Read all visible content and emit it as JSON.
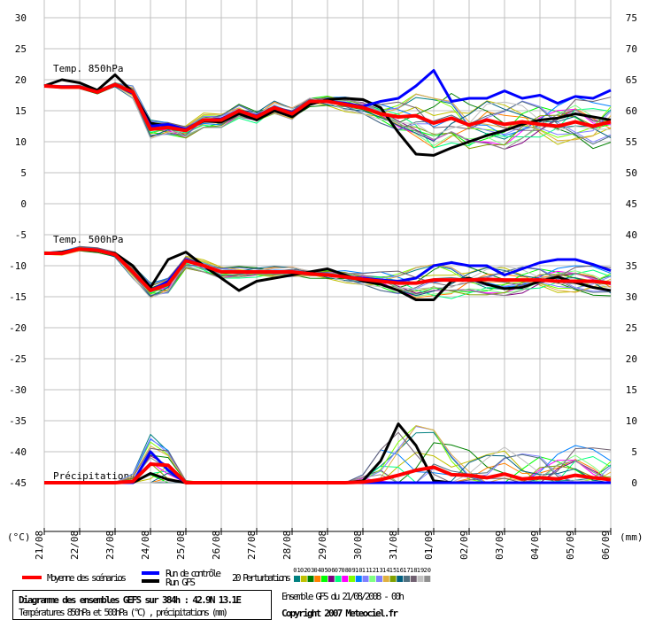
{
  "chart_data": {
    "type": "line",
    "title": "Diagramme des ensembles GEFS sur 384h : 42.9N 13.1E",
    "subtitle": "Températures 850hPa et 500hPa (°C) , précipitations (mm)",
    "run_info": "Ensemble GFS du 21/08/2008 - 00h",
    "copyright": "Copyright 2007 Meteociel.fr",
    "left_unit": "(°C)",
    "right_unit": "(mm)",
    "left_ticks": [
      30,
      25,
      20,
      15,
      10,
      5,
      0,
      -5,
      -10,
      -15,
      -20,
      -25,
      -30,
      -35,
      -40,
      -45
    ],
    "right_ticks": [
      75,
      70,
      65,
      60,
      55,
      50,
      45,
      40,
      35,
      30,
      25,
      20,
      15,
      10,
      5,
      0
    ],
    "x_labels": [
      "21/08",
      "22/08",
      "23/08",
      "24/08",
      "25/08",
      "26/08",
      "27/08",
      "28/08",
      "29/08",
      "30/08",
      "31/08",
      "01/09",
      "02/09",
      "03/09",
      "04/09",
      "05/09",
      "06/09"
    ],
    "x_step_hours": 12,
    "grid": true,
    "panels": {
      "t850": {
        "label": "Temp. 850hPa",
        "unit": "°C",
        "mean": [
          19,
          18.8,
          18.8,
          18,
          19.2,
          18,
          12,
          12.3,
          11.8,
          13.5,
          13.5,
          15,
          14,
          15.5,
          14.5,
          16.5,
          16.5,
          16,
          15.5,
          14.5,
          14,
          14.2,
          13,
          13.8,
          12.7,
          13.5,
          12.8,
          13.2,
          12.8,
          12.5,
          13.2,
          12.5,
          13.2
        ],
        "control": [
          19,
          18.8,
          18.8,
          18,
          19.2,
          17.8,
          12.5,
          12.8,
          12,
          13.5,
          13.7,
          15,
          14.2,
          15.5,
          14.7,
          16.5,
          16.5,
          16.2,
          15.7,
          16.5,
          17,
          19,
          21.5,
          16.5,
          17,
          17,
          18.2,
          17,
          17.5,
          16.2,
          17.3,
          17,
          18.3
        ],
        "gfs": [
          19,
          20,
          19.5,
          18.3,
          20.8,
          18,
          13,
          12.5,
          12,
          13.3,
          13.2,
          14.5,
          13.5,
          15,
          14,
          16,
          16.8,
          17,
          16.8,
          15.5,
          11.5,
          8,
          7.8,
          9,
          10,
          11,
          11.8,
          12.8,
          13.5,
          13.8,
          14.5,
          14,
          13.5
        ],
        "spread": [
          0.3,
          0.3,
          0.3,
          0.3,
          0.4,
          1,
          1.5,
          1.2,
          1.2,
          1.2,
          1.2,
          1.2,
          1.2,
          1.2,
          1.2,
          1.2,
          1.2,
          1.2,
          1.2,
          1.5,
          2.5,
          3.5,
          4,
          4,
          4,
          4,
          4,
          4,
          4,
          4,
          4,
          4,
          4
        ]
      },
      "t500": {
        "label": "Temp. 500hPa",
        "unit": "°C",
        "mean": [
          -8,
          -8,
          -7.3,
          -7.5,
          -8.2,
          -11,
          -14,
          -13,
          -9.2,
          -10,
          -11,
          -11,
          -11,
          -11,
          -11,
          -11.3,
          -11.5,
          -11.8,
          -12.2,
          -12.5,
          -12.8,
          -12.8,
          -12.3,
          -12.3,
          -12.3,
          -12.2,
          -12.3,
          -12.3,
          -12.3,
          -12.5,
          -12.5,
          -12.5,
          -12.8
        ],
        "control": [
          -8,
          -8,
          -7.3,
          -7.5,
          -8.2,
          -11,
          -14,
          -12.5,
          -9,
          -10,
          -11,
          -11,
          -11,
          -11,
          -11,
          -11.3,
          -11.5,
          -11.8,
          -12,
          -12.3,
          -12.5,
          -12,
          -10,
          -9.5,
          -10,
          -10,
          -11.5,
          -10.5,
          -9.5,
          -9,
          -9,
          -9.8,
          -10.8
        ],
        "gfs": [
          -8,
          -7.8,
          -7.3,
          -7.6,
          -8,
          -10,
          -13.5,
          -9,
          -7.8,
          -10,
          -12,
          -14,
          -12.5,
          -12,
          -11.5,
          -11,
          -10.5,
          -11.5,
          -12.5,
          -13,
          -14,
          -15.5,
          -15.5,
          -12.5,
          -12,
          -13,
          -13.7,
          -13.5,
          -12.5,
          -11.8,
          -12.7,
          -13.5,
          -14
        ],
        "spread": [
          0.4,
          0.4,
          0.4,
          0.4,
          0.5,
          1,
          1.2,
          1.5,
          1.2,
          1,
          1,
          1,
          1,
          1,
          1,
          1,
          1,
          1,
          1,
          1.5,
          2,
          2.5,
          2.5,
          3,
          2.5,
          2.5,
          2.5,
          2.5,
          2.5,
          2.5,
          2.5,
          2.5,
          2.5
        ]
      },
      "precip": {
        "label": "Précipitations",
        "unit": "mm",
        "mean": [
          0,
          0,
          0,
          0,
          0,
          0.2,
          3,
          2.8,
          0,
          0,
          0,
          0,
          0,
          0,
          0,
          0,
          0,
          0,
          0.1,
          0.5,
          1.2,
          2,
          2.5,
          1.3,
          1.2,
          0.8,
          1.4,
          0.6,
          0.8,
          0.6,
          1.2,
          0.8,
          0.5
        ],
        "control": [
          0,
          0,
          0,
          0,
          0,
          0,
          5,
          2,
          0,
          0,
          0,
          0,
          0,
          0,
          0,
          0,
          0,
          0,
          0,
          0,
          0,
          0,
          0,
          0,
          0,
          0,
          0,
          0,
          0,
          0,
          0,
          0,
          0
        ],
        "gfs": [
          0,
          0,
          0,
          0,
          0,
          0,
          1.5,
          0.5,
          0,
          0,
          0,
          0,
          0,
          0,
          0,
          0,
          0,
          0,
          0.3,
          3.5,
          9.5,
          6,
          0.3,
          0,
          0,
          0,
          0,
          0,
          0,
          0,
          0,
          0,
          0
        ],
        "spread": [
          0,
          0,
          0,
          0,
          0,
          1,
          4,
          3,
          0.5,
          0,
          0,
          0,
          0,
          0,
          0,
          0,
          0,
          0,
          1,
          4,
          6,
          6,
          5,
          4,
          4,
          4,
          4,
          4,
          4,
          4,
          4,
          4,
          4
        ]
      }
    },
    "legend": {
      "mean_label": "Moyenne des scénarios",
      "control_label": "Run de contrôle",
      "gfs_label": "Run GFS",
      "pert_label": "20 Perturbations",
      "mean_color": "#ff0000",
      "control_color": "#0000ff",
      "gfs_color": "#000000",
      "perturbations": [
        {
          "id": "01",
          "color": "#008080"
        },
        {
          "id": "02",
          "color": "#c0c000"
        },
        {
          "id": "03",
          "color": "#008000"
        },
        {
          "id": "04",
          "color": "#ff8000"
        },
        {
          "id": "05",
          "color": "#00ff00"
        },
        {
          "id": "06",
          "color": "#800080"
        },
        {
          "id": "07",
          "color": "#00ff80"
        },
        {
          "id": "08",
          "color": "#ff00ff"
        },
        {
          "id": "09",
          "color": "#80ff00"
        },
        {
          "id": "10",
          "color": "#0080ff"
        },
        {
          "id": "11",
          "color": "#8080ff"
        },
        {
          "id": "12",
          "color": "#80ff80"
        },
        {
          "id": "13",
          "color": "#8080ff"
        },
        {
          "id": "14",
          "color": "#e0b040"
        },
        {
          "id": "15",
          "color": "#80a000"
        },
        {
          "id": "16",
          "color": "#006080"
        },
        {
          "id": "17",
          "color": "#507080"
        },
        {
          "id": "18",
          "color": "#706070"
        },
        {
          "id": "19",
          "color": "#c0c0c0"
        },
        {
          "id": "20",
          "color": "#909090"
        }
      ]
    }
  }
}
